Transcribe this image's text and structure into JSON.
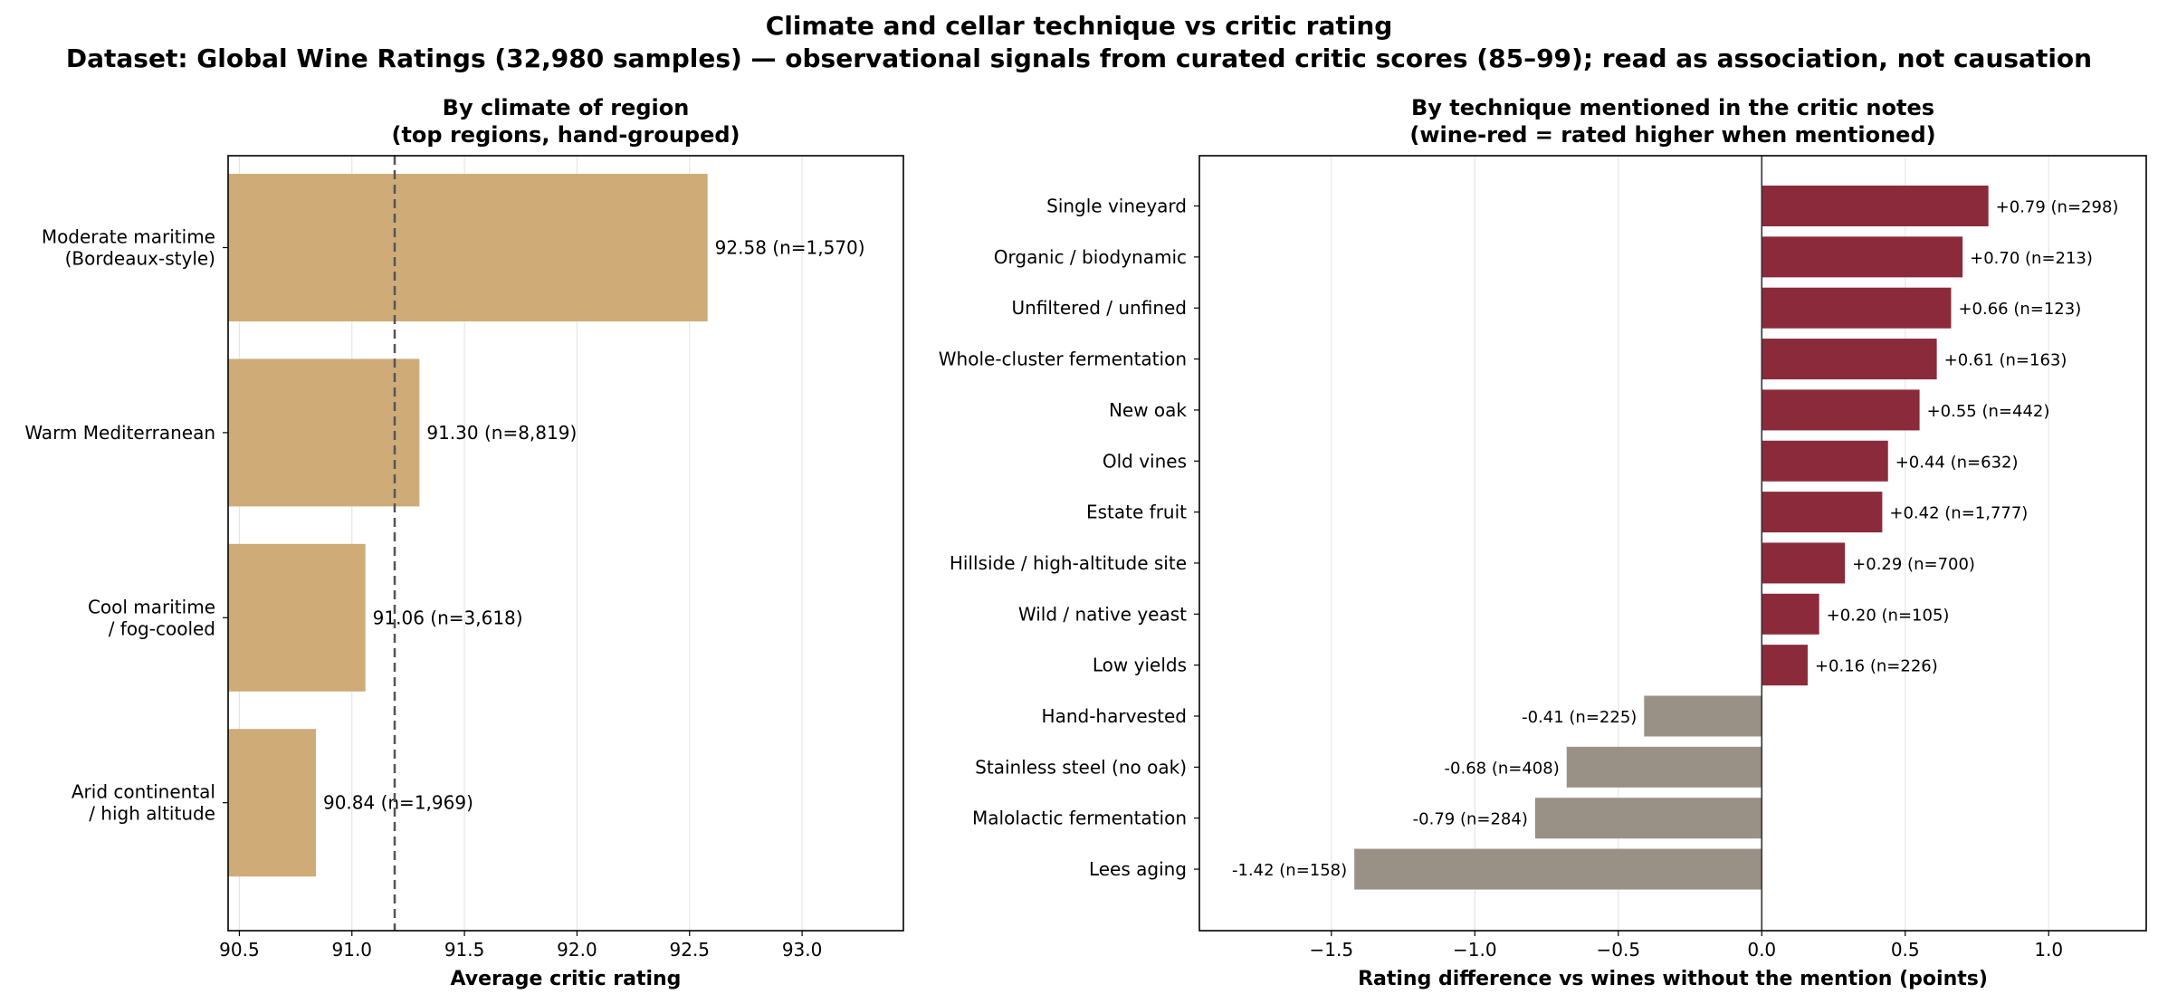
{
  "figure": {
    "title": "Climate and cellar technique vs critic rating",
    "subtitle": "Dataset: Global Wine Ratings (32,980 samples) — observational signals from curated critic scores (85–99); read as association, not causation"
  },
  "colors": {
    "climate_bar": "#cfab78",
    "positive_bar": "#8b2a3a",
    "negative_bar": "#9a9186",
    "reference_line": "#555555",
    "grid": "#e6e6e6"
  },
  "chart_data": [
    {
      "type": "bar",
      "orientation": "horizontal",
      "title": "By climate of region\n(top regions, hand-grouped)",
      "xlabel": "Average critic rating",
      "ylabel": "",
      "xlim": [
        90.45,
        93.45
      ],
      "xticks": [
        "90.5",
        "91.0",
        "91.5",
        "92.0",
        "92.5",
        "93.0"
      ],
      "xtick_values": [
        90.5,
        91.0,
        91.5,
        92.0,
        92.5,
        93.0
      ],
      "grid": "x",
      "reference_line": 91.19,
      "categories": [
        "Moderate maritime\n(Bordeaux-style)",
        "Warm Mediterranean",
        "Cool maritime\n/ fog-cooled",
        "Arid continental\n/ high altitude"
      ],
      "values": [
        92.58,
        91.3,
        91.06,
        90.84
      ],
      "labels": [
        "92.58 (n=1,570)",
        "91.30 (n=8,819)",
        "91.06 (n=3,618)",
        "90.84 (n=1,969)"
      ]
    },
    {
      "type": "bar",
      "orientation": "horizontal",
      "title": "By technique mentioned in the critic notes\n(wine-red = rated higher when mentioned)",
      "xlabel": "Rating difference vs wines without the mention (points)",
      "ylabel": "",
      "xlim": [
        -1.96,
        1.34
      ],
      "xticks": [
        "−1.5",
        "−1.0",
        "−0.5",
        "0.0",
        "0.5",
        "1.0"
      ],
      "xtick_values": [
        -1.5,
        -1.0,
        -0.5,
        0.0,
        0.5,
        1.0
      ],
      "grid": "x",
      "zero_line": 0,
      "categories": [
        "Single vineyard",
        "Organic / biodynamic",
        "Unfiltered / unfined",
        "Whole-cluster fermentation",
        "New oak",
        "Old vines",
        "Estate fruit",
        "Hillside / high-altitude site",
        "Wild / native yeast",
        "Low yields",
        "Hand-harvested",
        "Stainless steel (no oak)",
        "Malolactic fermentation",
        "Lees aging"
      ],
      "values": [
        0.79,
        0.7,
        0.66,
        0.61,
        0.55,
        0.44,
        0.42,
        0.29,
        0.2,
        0.16,
        -0.41,
        -0.68,
        -0.79,
        -1.42
      ],
      "labels": [
        "+0.79 (n=298)",
        "+0.70 (n=213)",
        "+0.66 (n=123)",
        "+0.61 (n=163)",
        "+0.55 (n=442)",
        "+0.44 (n=632)",
        "+0.42 (n=1,777)",
        "+0.29 (n=700)",
        "+0.20 (n=105)",
        "+0.16 (n=226)",
        "-0.41 (n=225)",
        "-0.68 (n=408)",
        "-0.79 (n=284)",
        "-1.42 (n=158)"
      ]
    }
  ]
}
